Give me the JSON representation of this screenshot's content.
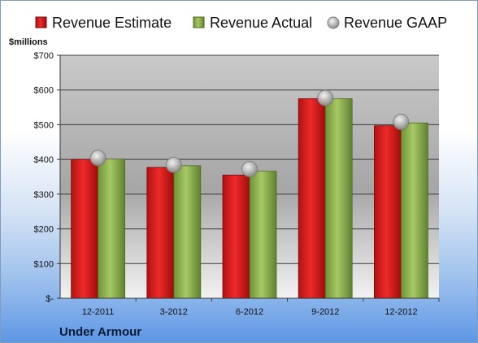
{
  "chart_data": {
    "type": "bar",
    "categories": [
      "12-2011",
      "3-2012",
      "6-2012",
      "9-2012",
      "12-2012"
    ],
    "series": [
      {
        "name": "Revenue Estimate",
        "values": [
          400,
          377,
          355,
          575,
          497
        ],
        "color": "#d01c1c"
      },
      {
        "name": "Revenue Actual",
        "values": [
          401,
          382,
          366,
          575,
          505
        ],
        "color": "#8db04a"
      }
    ],
    "markers": {
      "name": "Revenue GAAP",
      "values": [
        404,
        384,
        372,
        577,
        508
      ]
    },
    "ylabel": "$millions",
    "ylim": [
      0,
      700
    ],
    "yticks": [
      0,
      100,
      200,
      300,
      400,
      500,
      600,
      700
    ],
    "ytick_labels": [
      "$-",
      "$100",
      "$200",
      "$300",
      "$400",
      "$500",
      "$600",
      "$700"
    ],
    "grid": true,
    "legend_position": "top",
    "footer": "Under Armour"
  }
}
